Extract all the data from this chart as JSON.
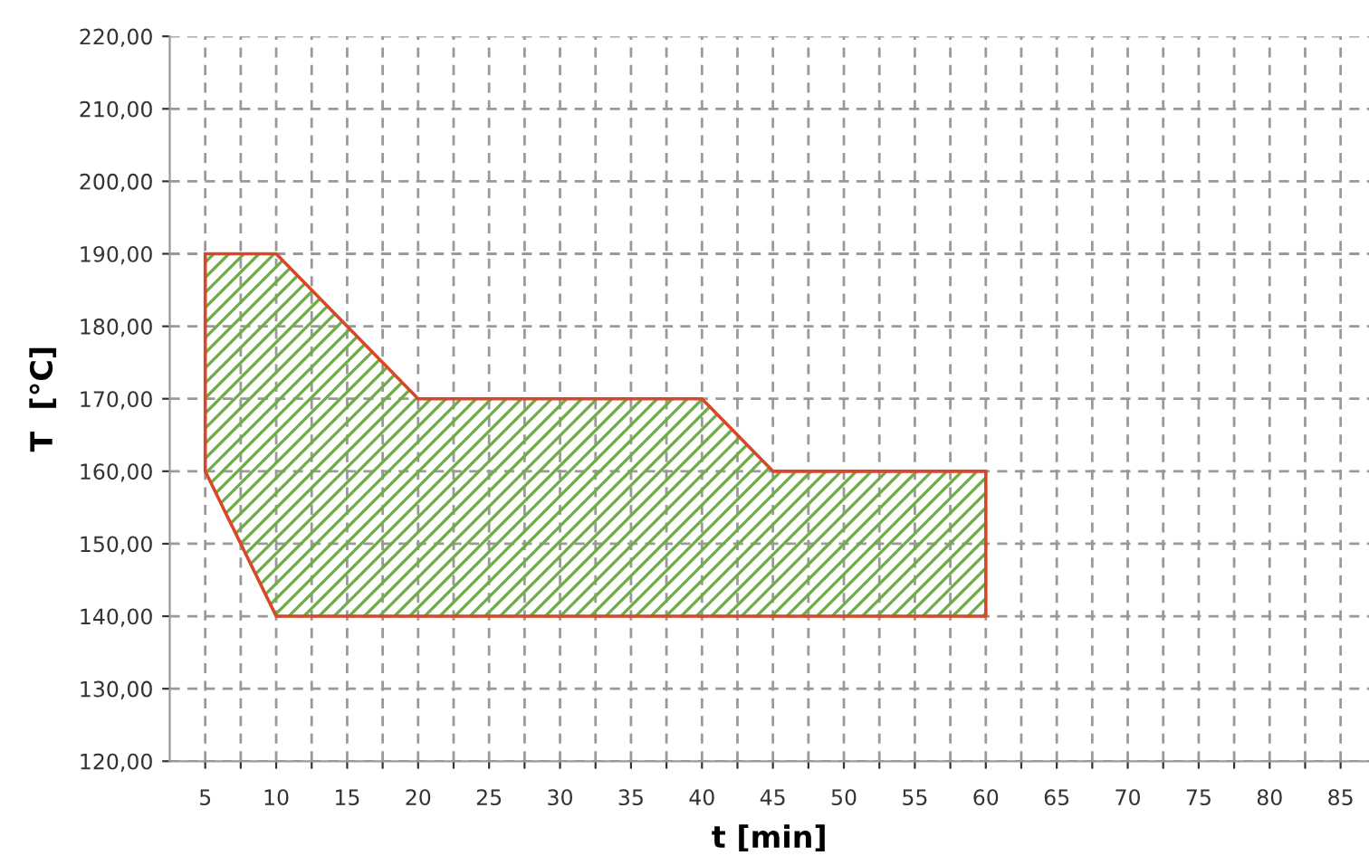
{
  "chart_data": {
    "type": "area",
    "xlabel": "t [min]",
    "ylabel": "T  [°C]",
    "series": [
      {
        "x": [
          5,
          10,
          20,
          40,
          45,
          60,
          60,
          10,
          5,
          5
        ],
        "values": [
          190,
          190,
          170,
          170,
          160,
          160,
          140,
          140,
          160,
          190
        ],
        "color": "#d9472b"
      }
    ],
    "xlim": [
      2.5,
      87
    ],
    "xticks": [
      5,
      {
        "value": 7.5,
        "label": null
      },
      10,
      {
        "value": 12.5,
        "label": null
      },
      15,
      {
        "value": 17.5,
        "label": null
      },
      20,
      {
        "value": 22.5,
        "label": null
      },
      25,
      {
        "value": 27.5,
        "label": null
      },
      30,
      {
        "value": 32.5,
        "label": null
      },
      35,
      {
        "value": 37.5,
        "label": null
      },
      40,
      {
        "value": 42.5,
        "label": null
      },
      45,
      {
        "value": 47.5,
        "label": null
      },
      50,
      {
        "value": 52.5,
        "label": null
      },
      55,
      {
        "value": 57.5,
        "label": null
      },
      60,
      {
        "value": 62.5,
        "label": null
      },
      65,
      {
        "value": 67.5,
        "label": null
      },
      70,
      {
        "value": 72.5,
        "label": null
      },
      75,
      {
        "value": 77.5,
        "label": null
      },
      80,
      {
        "value": 82.5,
        "label": null
      },
      85
    ],
    "ylim": [
      120,
      220
    ],
    "yticks": [
      {
        "value": 120,
        "label": "120,00"
      },
      {
        "value": 130,
        "label": "130,00"
      },
      {
        "value": 140,
        "label": "140,00"
      },
      {
        "value": 150,
        "label": "150,00"
      },
      {
        "value": 160,
        "label": "160,00"
      },
      {
        "value": 170,
        "label": "170,00"
      },
      {
        "value": 180,
        "label": "180,00"
      },
      {
        "value": 190,
        "label": "190,00"
      },
      {
        "value": 200,
        "label": "200,00"
      },
      {
        "value": 210,
        "label": "210,00"
      },
      {
        "value": 220,
        "label": "220,00"
      }
    ],
    "grid": true,
    "legend": false
  }
}
